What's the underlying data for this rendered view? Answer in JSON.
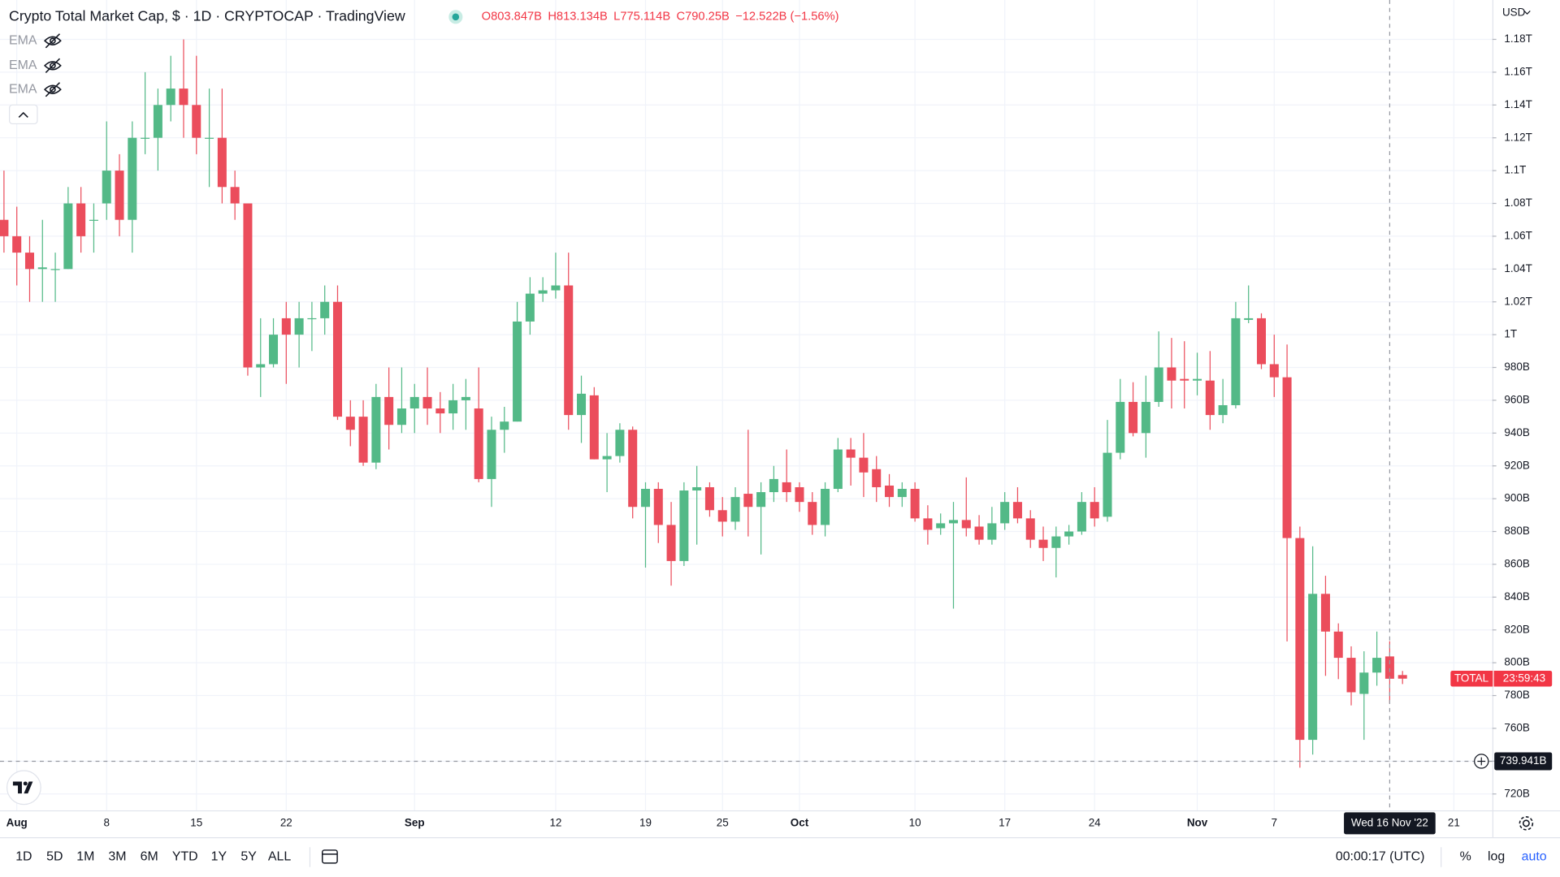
{
  "header": {
    "title": "Crypto Total Market Cap, $ · 1D · CRYPTOCAP · TradingView",
    "ohlc": [
      "O803.847B",
      "H813.134B",
      "L775.114B",
      "C790.25B",
      "−12.522B (−1.56%)"
    ]
  },
  "indicators": [
    "EMA",
    "EMA",
    "EMA"
  ],
  "currency": "USD",
  "price_label": {
    "name": "TOTAL",
    "countdown": "23:59:43"
  },
  "toolbar": {
    "ranges": [
      "1D",
      "5D",
      "1M",
      "3M",
      "6M",
      "YTD",
      "1Y",
      "5Y",
      "ALL"
    ],
    "clock": "00:00:17 (UTC)",
    "scale_options": [
      "%",
      "log",
      "auto"
    ]
  },
  "chart_data": {
    "type": "candlestick",
    "x": [
      "2022-07-31",
      "2022-08-01",
      "2022-08-02",
      "2022-08-03",
      "2022-08-04",
      "2022-08-05",
      "2022-08-06",
      "2022-08-07",
      "2022-08-08",
      "2022-08-09",
      "2022-08-10",
      "2022-08-11",
      "2022-08-12",
      "2022-08-13",
      "2022-08-14",
      "2022-08-15",
      "2022-08-16",
      "2022-08-17",
      "2022-08-18",
      "2022-08-19",
      "2022-08-20",
      "2022-08-21",
      "2022-08-22",
      "2022-08-23",
      "2022-08-24",
      "2022-08-25",
      "2022-08-26",
      "2022-08-27",
      "2022-08-28",
      "2022-08-29",
      "2022-08-30",
      "2022-08-31",
      "2022-09-01",
      "2022-09-02",
      "2022-09-03",
      "2022-09-04",
      "2022-09-05",
      "2022-09-06",
      "2022-09-07",
      "2022-09-08",
      "2022-09-09",
      "2022-09-10",
      "2022-09-11",
      "2022-09-12",
      "2022-09-13",
      "2022-09-14",
      "2022-09-15",
      "2022-09-16",
      "2022-09-17",
      "2022-09-18",
      "2022-09-19",
      "2022-09-20",
      "2022-09-21",
      "2022-09-22",
      "2022-09-23",
      "2022-09-24",
      "2022-09-25",
      "2022-09-26",
      "2022-09-27",
      "2022-09-28",
      "2022-09-29",
      "2022-09-30",
      "2022-10-01",
      "2022-10-02",
      "2022-10-03",
      "2022-10-04",
      "2022-10-05",
      "2022-10-06",
      "2022-10-07",
      "2022-10-08",
      "2022-10-09",
      "2022-10-10",
      "2022-10-11",
      "2022-10-12",
      "2022-10-13",
      "2022-10-14",
      "2022-10-15",
      "2022-10-16",
      "2022-10-17",
      "2022-10-18",
      "2022-10-19",
      "2022-10-20",
      "2022-10-21",
      "2022-10-22",
      "2022-10-23",
      "2022-10-24",
      "2022-10-25",
      "2022-10-26",
      "2022-10-27",
      "2022-10-28",
      "2022-10-29",
      "2022-10-30",
      "2022-10-31",
      "2022-11-01",
      "2022-11-02",
      "2022-11-03",
      "2022-11-04",
      "2022-11-05",
      "2022-11-06",
      "2022-11-07",
      "2022-11-08",
      "2022-11-09",
      "2022-11-10",
      "2022-11-11",
      "2022-11-12",
      "2022-11-13",
      "2022-11-14",
      "2022-11-15",
      "2022-11-16",
      "2022-11-17"
    ],
    "open": [
      1070,
      1060,
      1050,
      1040,
      1040,
      1040,
      1080,
      1070,
      1080,
      1100,
      1070,
      1120,
      1120,
      1140,
      1150,
      1140,
      1120,
      1120,
      1090,
      1080,
      980,
      982,
      1010,
      1000,
      1010,
      1010,
      1020,
      950,
      950,
      922,
      962,
      945,
      955,
      962,
      955,
      952,
      960,
      955,
      912,
      942,
      947,
      1008,
      1025,
      1027,
      1030,
      951,
      963,
      924,
      926,
      942,
      895,
      906,
      884,
      862,
      905,
      907,
      893,
      886,
      903,
      895,
      904,
      910,
      907,
      898,
      884,
      906,
      930,
      925,
      918,
      908,
      901,
      906,
      888,
      882,
      885,
      887,
      883,
      875,
      885,
      898,
      888,
      875,
      870,
      877,
      880,
      898,
      889,
      928,
      959,
      940,
      959,
      980,
      973,
      972,
      972,
      951,
      957,
      1009,
      1010,
      982,
      974,
      876,
      753,
      842,
      819,
      803,
      781,
      794,
      803.847,
      792.5
    ],
    "high": [
      1100,
      1078,
      1060,
      1070,
      1050,
      1090,
      1090,
      1080,
      1130,
      1110,
      1130,
      1160,
      1150,
      1170,
      1180,
      1170,
      1150,
      1150,
      1100,
      1080,
      1010,
      1010,
      1020,
      1020,
      1020,
      1030,
      1030,
      960,
      960,
      970,
      980,
      980,
      970,
      980,
      965,
      970,
      973,
      980,
      950,
      956,
      1020,
      1035,
      1035,
      1050,
      1050,
      975,
      968,
      940,
      946,
      944,
      910,
      910,
      898,
      910,
      920,
      910,
      901,
      907,
      942,
      910,
      920,
      930,
      910,
      904,
      910,
      937,
      937,
      940,
      926,
      915,
      910,
      910,
      896,
      891,
      898,
      913,
      890,
      895,
      904,
      907,
      893,
      883,
      883,
      884,
      904,
      907,
      948,
      973,
      971,
      975,
      1002,
      998,
      996,
      989,
      990,
      973,
      1020,
      1030,
      1013,
      1000,
      994,
      883,
      871,
      853,
      824,
      810,
      807,
      819,
      813.134,
      795
    ],
    "low": [
      1050,
      1030,
      1020,
      1020,
      1020,
      1040,
      1050,
      1050,
      1070,
      1060,
      1050,
      1110,
      1100,
      1130,
      1120,
      1110,
      1090,
      1080,
      1070,
      975,
      962,
      980,
      970,
      980,
      990,
      1000,
      948,
      932,
      920,
      918,
      930,
      940,
      940,
      945,
      940,
      942,
      942,
      910,
      895,
      928,
      947,
      1000,
      1020,
      1022,
      942,
      934,
      924,
      904,
      922,
      888,
      858,
      873,
      847,
      859,
      872,
      889,
      877,
      881,
      877,
      866,
      898,
      898,
      892,
      878,
      877,
      904,
      908,
      901,
      898,
      895,
      895,
      886,
      872,
      878,
      833,
      877,
      872,
      872,
      881,
      885,
      870,
      862,
      852,
      872,
      878,
      883,
      886,
      924,
      938,
      925,
      956,
      955,
      955,
      963,
      942,
      946,
      955,
      1007,
      979,
      962,
      813,
      736,
      744,
      792,
      790,
      774,
      753,
      786,
      775.114,
      787
    ],
    "close": [
      1060,
      1050,
      1040,
      1041,
      1040,
      1080,
      1060,
      1070,
      1100,
      1070,
      1120,
      1120,
      1140,
      1150,
      1140,
      1120,
      1120,
      1090,
      1080,
      980,
      982,
      1000,
      1000,
      1010,
      1010,
      1020,
      950,
      942,
      922,
      962,
      945,
      955,
      962,
      955,
      952,
      960,
      962,
      912,
      942,
      947,
      1008,
      1025,
      1027,
      1030,
      951,
      964,
      924,
      926,
      942,
      895,
      906,
      884,
      862,
      905,
      907,
      893,
      886,
      901,
      895,
      904,
      912,
      904,
      898,
      884,
      906,
      930,
      925,
      916,
      907,
      901,
      906,
      888,
      881,
      885,
      887,
      882,
      875,
      885,
      898,
      888,
      875,
      870,
      877,
      880,
      898,
      888,
      928,
      959,
      940,
      959,
      980,
      972,
      972,
      973,
      951,
      957,
      1010,
      1010,
      982,
      974,
      876,
      753,
      842,
      819,
      803,
      782,
      794,
      803,
      790.25,
      790.3
    ],
    "up_color": "#53b987",
    "down_color": "#eb4d5c",
    "xlim": [
      "2022-07-31",
      "2022-11-24"
    ],
    "ylim": [
      710,
      1204
    ],
    "xticks": [
      {
        "value": "2022-08-01",
        "label": "Aug"
      },
      {
        "value": "2022-08-08",
        "label": "8"
      },
      {
        "value": "2022-08-15",
        "label": "15"
      },
      {
        "value": "2022-08-22",
        "label": "22"
      },
      {
        "value": "2022-09-01",
        "label": "Sep"
      },
      {
        "value": "2022-09-12",
        "label": "12"
      },
      {
        "value": "2022-09-19",
        "label": "19"
      },
      {
        "value": "2022-09-25",
        "label": "25"
      },
      {
        "value": "2022-10-01",
        "label": "Oct"
      },
      {
        "value": "2022-10-10",
        "label": "10"
      },
      {
        "value": "2022-10-17",
        "label": "17"
      },
      {
        "value": "2022-10-24",
        "label": "24"
      },
      {
        "value": "2022-11-01",
        "label": "Nov"
      },
      {
        "value": "2022-11-07",
        "label": "7"
      },
      {
        "value": "2022-11-21",
        "label": "21"
      }
    ],
    "yticks": [
      {
        "value": 720,
        "label": "720B"
      },
      {
        "value": 740,
        "label": "740B"
      },
      {
        "value": 760,
        "label": "760B"
      },
      {
        "value": 780,
        "label": "780B"
      },
      {
        "value": 800,
        "label": "800B"
      },
      {
        "value": 820,
        "label": "820B"
      },
      {
        "value": 840,
        "label": "840B"
      },
      {
        "value": 860,
        "label": "860B"
      },
      {
        "value": 880,
        "label": "880B"
      },
      {
        "value": 900,
        "label": "900B"
      },
      {
        "value": 920,
        "label": "920B"
      },
      {
        "value": 940,
        "label": "940B"
      },
      {
        "value": 960,
        "label": "960B"
      },
      {
        "value": 980,
        "label": "980B"
      },
      {
        "value": 1000,
        "label": "1T"
      },
      {
        "value": 1020,
        "label": "1.02T"
      },
      {
        "value": 1040,
        "label": "1.04T"
      },
      {
        "value": 1060,
        "label": "1.06T"
      },
      {
        "value": 1080,
        "label": "1.08T"
      },
      {
        "value": 1100,
        "label": "1.1T"
      },
      {
        "value": 1120,
        "label": "1.12T"
      },
      {
        "value": 1140,
        "label": "1.14T"
      },
      {
        "value": 1160,
        "label": "1.16T"
      },
      {
        "value": 1180,
        "label": "1.18T"
      }
    ],
    "grid": true,
    "crosshair": {
      "x": "2022-11-16",
      "y": 739.941,
      "x_label": "Wed 16 Nov '22",
      "y_label": "739.941B"
    }
  }
}
